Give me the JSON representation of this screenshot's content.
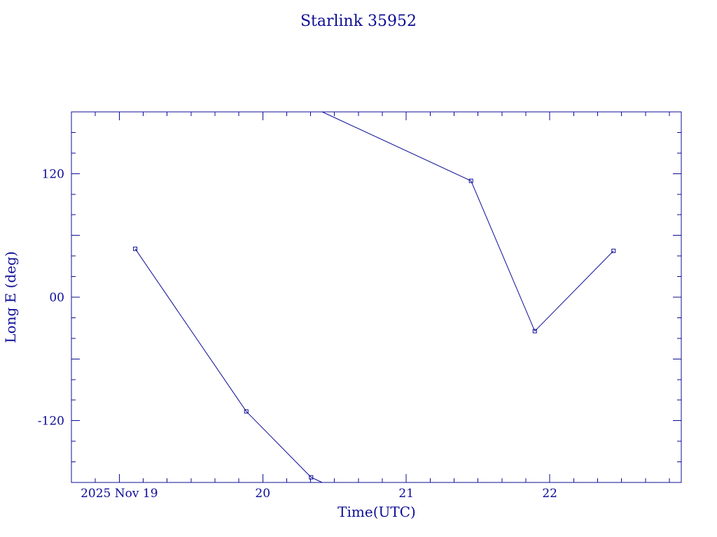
{
  "chart_data": {
    "type": "line",
    "title": "Starlink 35952",
    "xlabel": "Time(UTC)",
    "ylabel": "Long E (deg)",
    "x_unit": "days (UTC)",
    "xlim": [
      "2025-11-18 16:00",
      "2025-11-22 22:00"
    ],
    "ylim": [
      -180,
      180
    ],
    "x_ticks": [
      {
        "label": "2025 Nov 19",
        "x": "2025-11-19 00:00"
      },
      {
        "label": "20",
        "x": "2025-11-20 00:00"
      },
      {
        "label": "21",
        "x": "2025-11-21 00:00"
      },
      {
        "label": "22",
        "x": "2025-11-22 00:00"
      }
    ],
    "y_ticks": [
      {
        "label": "120",
        "value": 120
      },
      {
        "label": "00",
        "value": 0
      },
      {
        "label": "-120",
        "value": -120
      }
    ],
    "series": [
      {
        "points": [
          {
            "x": "2025-11-19 02:40",
            "y": 47
          },
          {
            "x": "2025-11-19 21:15",
            "y": -111
          },
          {
            "x": "2025-11-20 08:05",
            "y": -175
          },
          {
            "x": "2025-11-21 10:50",
            "y": 113
          },
          {
            "x": "2025-11-21 21:30",
            "y": -33
          },
          {
            "x": "2025-11-22 10:40",
            "y": 45
          }
        ],
        "segments_wrap_at": [
          -180,
          180
        ]
      }
    ],
    "grid": false,
    "legend": "none",
    "color": "#0c0c96"
  }
}
